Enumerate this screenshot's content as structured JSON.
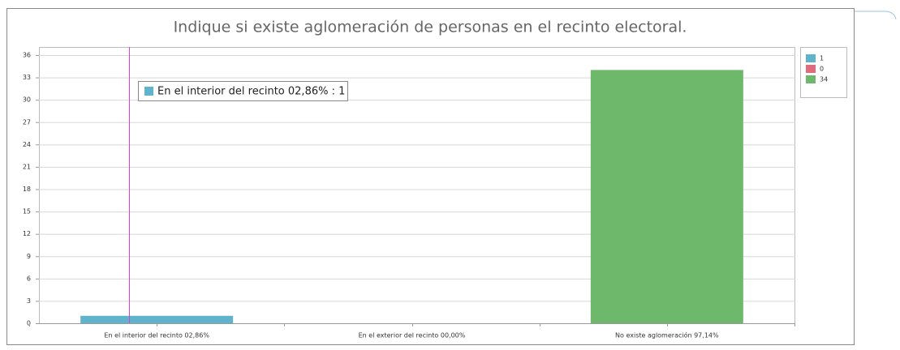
{
  "chart_data": {
    "type": "bar",
    "title": "Indique si existe aglomeración de personas en el recinto electoral.",
    "categories": [
      "En el interior del recinto 02,86%",
      "En el exterior del recinto 00,00%",
      "No existe aglomeración 97,14%"
    ],
    "values": [
      1,
      0,
      34
    ],
    "colors": [
      "#5fb3cb",
      "#e06b7c",
      "#6db86b"
    ],
    "ylim": [
      0,
      36
    ],
    "yticks": [
      0,
      3,
      6,
      9,
      12,
      15,
      18,
      21,
      24,
      27,
      30,
      33,
      36
    ],
    "grid": true,
    "legend": "right",
    "tooltip": "En el interior del recinto 02,86% : 1"
  }
}
